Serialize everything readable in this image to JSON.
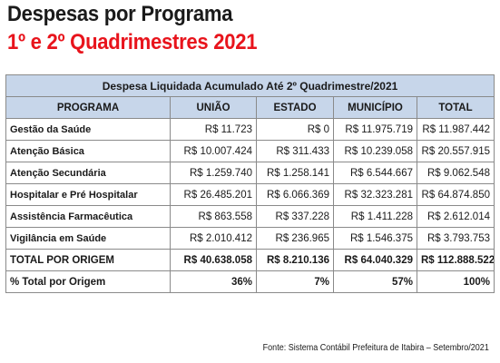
{
  "header": {
    "title": "Despesas por Programa",
    "subtitle": "1º e 2º Quadrimestres 2021"
  },
  "table": {
    "caption": "Despesa Liquidada Acumulado Até 2º Quadrimestre/2021",
    "columns": [
      "PROGRAMA",
      "UNIÃO",
      "ESTADO",
      "MUNICÍPIO",
      "TOTAL"
    ],
    "rows": [
      [
        "Gestão da Saúde",
        "R$ 11.723",
        "R$ 0",
        "R$ 11.975.719",
        "R$ 11.987.442"
      ],
      [
        "Atenção Básica",
        "R$ 10.007.424",
        "R$ 311.433",
        "R$ 10.239.058",
        "R$ 20.557.915"
      ],
      [
        "Atenção Secundária",
        "R$ 1.259.740",
        "R$ 1.258.141",
        "R$ 6.544.667",
        "R$ 9.062.548"
      ],
      [
        "Hospitalar e Pré Hospitalar",
        "R$ 26.485.201",
        "R$ 6.066.369",
        "R$ 32.323.281",
        "R$ 64.874.850"
      ],
      [
        "Assistência Farmacêutica",
        "R$ 863.558",
        "R$ 337.228",
        "R$ 1.411.228",
        "R$ 2.612.014"
      ],
      [
        "Vigilância em Saúde",
        "R$ 2.010.412",
        "R$ 236.965",
        "R$ 1.546.375",
        "R$ 3.793.753"
      ]
    ],
    "total_row": [
      "TOTAL POR ORIGEM",
      "R$ 40.638.058",
      "R$ 8.210.136",
      "R$ 64.040.329",
      "R$ 112.888.522"
    ],
    "percent_row": [
      "% Total por Origem",
      "36%",
      "7%",
      "57%",
      "100%"
    ]
  },
  "footer": {
    "source": "Fonte: Sistema Contábil Prefeitura de Itabira – Setembro/2021"
  },
  "colors": {
    "header_fill": "#c7d6ea",
    "subtitle_red": "#e8141c"
  }
}
